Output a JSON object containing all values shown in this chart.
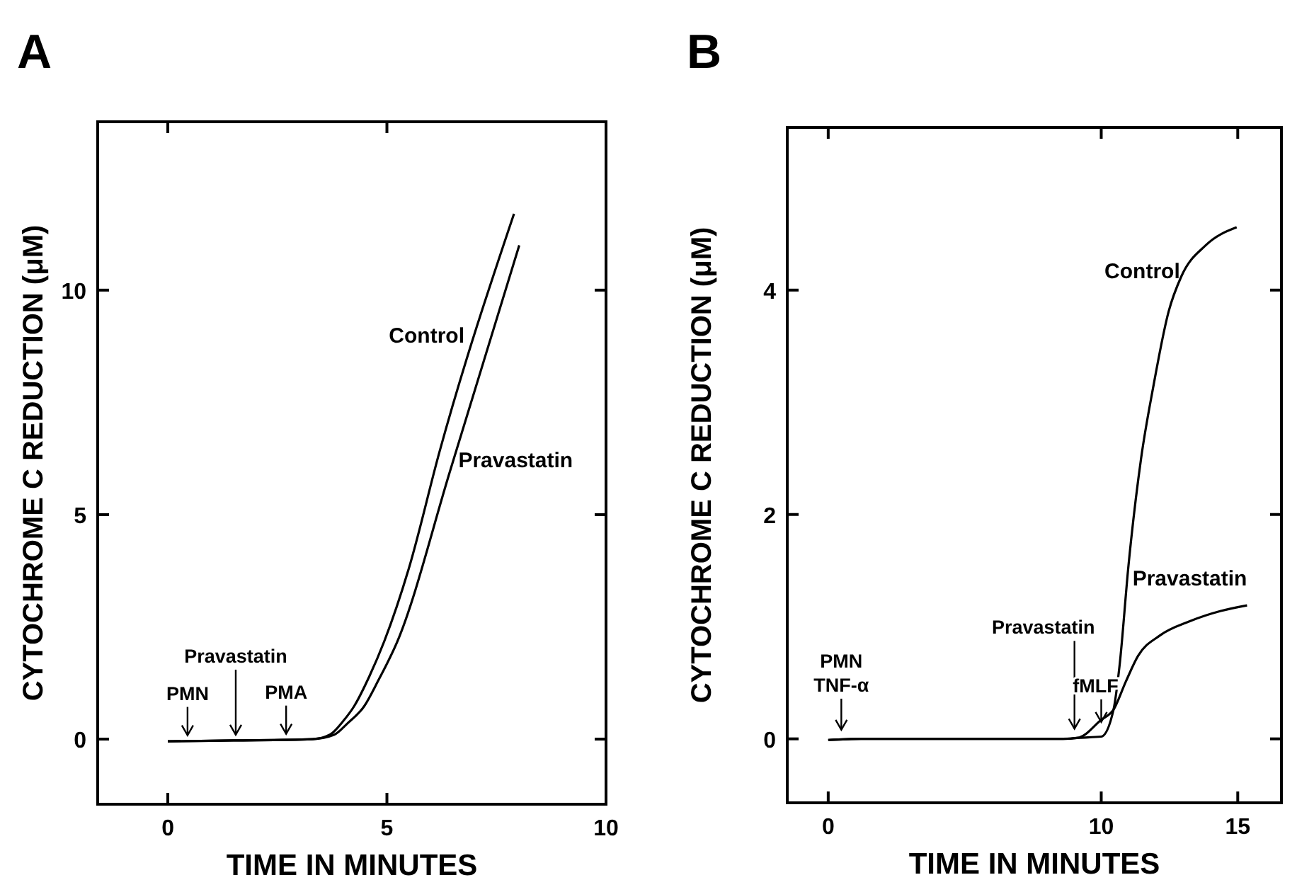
{
  "chart_data": [
    {
      "type": "line",
      "title": "A",
      "xlabel": "TIME IN MINUTES",
      "ylabel": "CYTOCHROME C REDUCTION (μM)",
      "xlim": [
        -1.6,
        10
      ],
      "ylim": [
        -1.45,
        13.75
      ],
      "xticks": [
        0,
        5,
        10
      ],
      "yticks": [
        0,
        5,
        10
      ],
      "grid": false,
      "legend": false,
      "marker": "none",
      "line_style": "solid",
      "series": [
        {
          "name": "Control",
          "color": "#000000",
          "x": [
            0,
            1.5,
            3.3,
            3.7,
            4.0,
            4.25,
            4.6,
            4.94,
            5.5,
            6.2,
            7.9
          ],
          "values": [
            -0.05,
            -0.03,
            0,
            0.1,
            0.4,
            0.73,
            1.4,
            2.18,
            3.8,
            6.4,
            11.7
          ]
        },
        {
          "name": "Pravastatin",
          "color": "#000000",
          "x": [
            0,
            1.5,
            3.3,
            3.8,
            4.1,
            4.48,
            4.8,
            5.24,
            6.45,
            8.02
          ],
          "values": [
            -0.05,
            -0.03,
            0,
            0.1,
            0.35,
            0.73,
            1.3,
            2.18,
            6.0,
            11.0
          ]
        }
      ],
      "annotations": [
        {
          "text": "PMN",
          "x": 0.45,
          "y": -0.04
        },
        {
          "text": "Pravastatin",
          "x": 1.55,
          "y": -0.03
        },
        {
          "text": "PMA",
          "x": 2.7,
          "y": -0.01
        }
      ]
    },
    {
      "type": "line",
      "title": "B",
      "xlabel": "TIME IN MINUTES",
      "ylabel": "CYTOCHROME C REDUCTION (μM)",
      "xlim": [
        -1.5,
        16.6
      ],
      "ylim": [
        -0.57,
        5.45
      ],
      "xticks": [
        0,
        10,
        15
      ],
      "yticks": [
        0,
        2,
        4
      ],
      "grid": false,
      "legend": false,
      "marker": "none",
      "line_style": "solid",
      "series": [
        {
          "name": "Control",
          "color": "#000000",
          "x": [
            0,
            1.2,
            8.6,
            9.2,
            10,
            10.45,
            10.67,
            11.0,
            11.46,
            11.9,
            12.47,
            12.93,
            13.83,
            14.96
          ],
          "values": [
            -0.01,
            0,
            0,
            0.01,
            0.02,
            0.26,
            0.65,
            1.55,
            2.5,
            3.13,
            3.81,
            4.12,
            4.4,
            4.56
          ]
        },
        {
          "name": "Pravastatin",
          "color": "#000000",
          "x": [
            0,
            1.2,
            8.6,
            9.16,
            10,
            10.45,
            10.9,
            11.35,
            12.14,
            13.26,
            14.38,
            15.34
          ],
          "values": [
            -0.01,
            0,
            0,
            0.01,
            0.17,
            0.26,
            0.51,
            0.74,
            0.92,
            1.05,
            1.14,
            1.19
          ]
        }
      ],
      "annotations": [
        {
          "text": "PMN\nTNF-α",
          "x": 0.48,
          "y": 0.03
        },
        {
          "text": "Pravastatin",
          "x": 9.02,
          "y": 0.04
        },
        {
          "text": "fMLF",
          "x": 10,
          "y": 0.1
        }
      ]
    }
  ]
}
